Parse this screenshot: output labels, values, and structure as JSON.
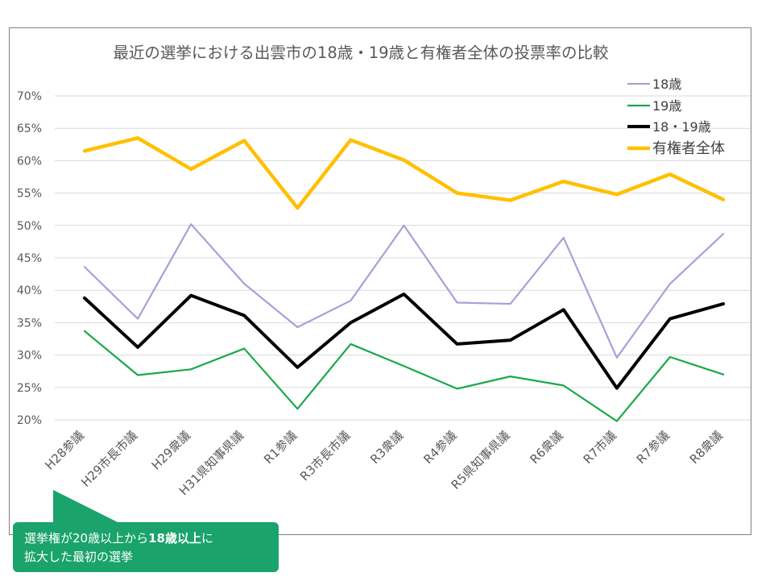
{
  "chart_data": {
    "type": "line",
    "title": "最近の選挙における出雲市の18歳・19歳と有権者全体の投票率の比較",
    "categories": [
      "H28参議",
      "H29市長市議",
      "H29衆議",
      "H31県知事県議",
      "R1参議",
      "R3市長市議",
      "R3衆議",
      "R4参議",
      "R5県知事県議",
      "R6衆議",
      "R7市議",
      "R7参議",
      "R8衆議"
    ],
    "yticks": [
      "70%",
      "65%",
      "60%",
      "55%",
      "50%",
      "45%",
      "40%",
      "35%",
      "30%",
      "25%",
      "20%"
    ],
    "ylim": [
      20,
      70
    ],
    "series": [
      {
        "name": "18歳",
        "color": "#a3a3d8",
        "values": [
          43.6,
          35.6,
          50.2,
          41.0,
          34.3,
          38.4,
          50.0,
          38.1,
          37.9,
          48.1,
          29.6,
          41.0,
          48.7
        ]
      },
      {
        "name": "19歳",
        "color": "#1aa84b",
        "values": [
          33.7,
          26.9,
          27.8,
          31.0,
          21.7,
          31.7,
          28.3,
          24.8,
          26.7,
          25.3,
          19.8,
          29.7,
          27.0
        ]
      },
      {
        "name": "18・19歳",
        "color": "#000000",
        "values": [
          38.8,
          31.2,
          39.2,
          36.1,
          28.1,
          35.0,
          39.4,
          31.7,
          32.3,
          37.0,
          24.9,
          35.6,
          37.9
        ]
      },
      {
        "name": "有権者全体",
        "color": "#ffc000",
        "values": [
          61.5,
          63.5,
          58.7,
          63.1,
          52.7,
          63.2,
          60.1,
          55.0,
          53.9,
          56.8,
          54.8,
          57.9,
          54.0
        ]
      }
    ]
  },
  "callout": {
    "text_before": "選挙権が20歳以上から",
    "text_bold": "18歳以上",
    "text_after": "に",
    "line2": "拡大した最初の選挙"
  }
}
